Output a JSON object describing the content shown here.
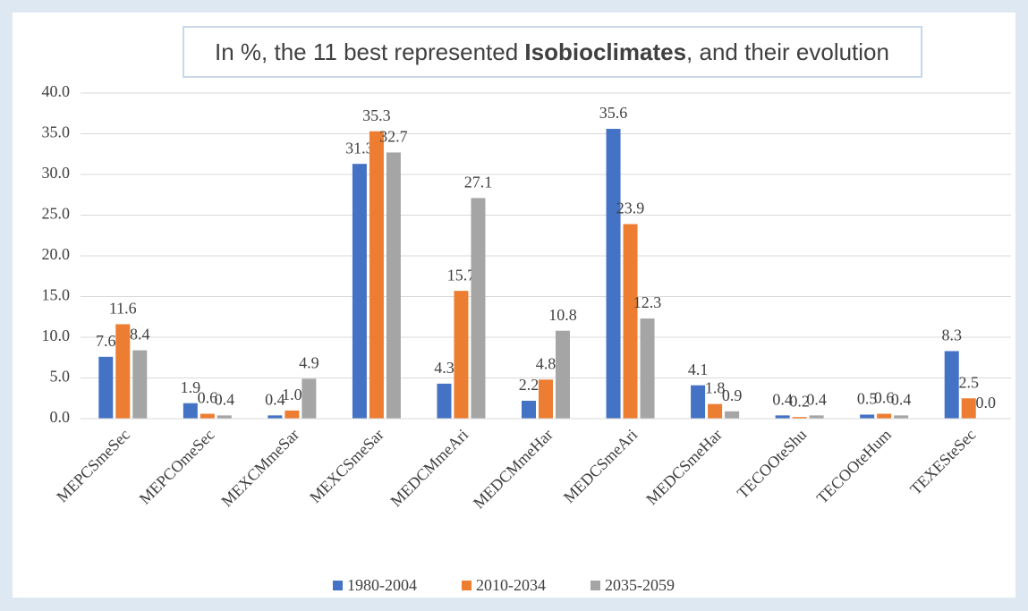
{
  "chart_data": {
    "type": "bar",
    "title": [
      "In %, the 11 best represented ",
      "Isobioclimates",
      ", and their evolution"
    ],
    "categories": [
      "MEPCSmeSec",
      "MEPCOmeSec",
      "MEXCMmeSar",
      "MEXCSmeSar",
      "MEDCMmeAri",
      "MEDCMmeHar",
      "MEDCSmeAri",
      "MEDCSmeHar",
      "TECOOteShu",
      "TECOOteHum",
      "TEXESteSec"
    ],
    "series": [
      {
        "name": "1980-2004",
        "color": "#4472c4",
        "values": [
          7.6,
          1.9,
          0.4,
          31.3,
          4.3,
          2.2,
          35.6,
          4.1,
          0.4,
          0.5,
          8.3
        ],
        "value_labels": [
          "7.6",
          "1.9",
          "0.4",
          "31.3",
          "4.3",
          "2.2",
          "35.6",
          "4.1",
          "0.4",
          "0.5",
          "8.3"
        ]
      },
      {
        "name": "2010-2034",
        "color": "#ed7d31",
        "values": [
          11.6,
          0.6,
          1.0,
          35.3,
          15.7,
          4.8,
          23.9,
          1.8,
          0.2,
          0.6,
          2.5
        ],
        "value_labels": [
          "11.6",
          "0.6",
          "1.0",
          "35.3",
          "15.7",
          "4.8",
          "23.9",
          "1.8",
          "0.2",
          "0.6",
          "2.5"
        ]
      },
      {
        "name": "2035-2059",
        "color": "#a5a5a5",
        "values": [
          8.4,
          0.4,
          4.9,
          32.7,
          27.1,
          10.8,
          12.3,
          0.9,
          0.4,
          0.4,
          0.0
        ],
        "value_labels": [
          "8.4",
          "0.4",
          "4.9",
          "32.7",
          "27.1",
          "10.8",
          "12.3",
          "0.9",
          "0.4",
          "0.4",
          "0.0"
        ]
      }
    ],
    "ylim": [
      0,
      40
    ],
    "yticks": [
      {
        "value": 0,
        "label": "0.0"
      },
      {
        "value": 5,
        "label": "5.0"
      },
      {
        "value": 10,
        "label": "10.0"
      },
      {
        "value": 15,
        "label": "15.0"
      },
      {
        "value": 20,
        "label": "20.0"
      },
      {
        "value": 25,
        "label": "25.0"
      },
      {
        "value": 30,
        "label": "30.0"
      },
      {
        "value": 35,
        "label": "35.0"
      },
      {
        "value": 40,
        "label": "40.0"
      }
    ],
    "grid": true,
    "legend": "bottom"
  }
}
